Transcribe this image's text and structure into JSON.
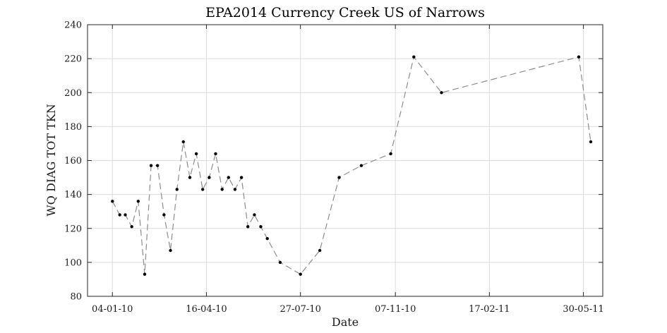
{
  "chart_data": {
    "type": "line",
    "title": "EPA2014 Currency Creek US of Narrows",
    "xlabel": "Date",
    "ylabel": "WQ DIAG TOT TKN",
    "x_axis_type": "date",
    "xlim": [
      "2009-12-08",
      "2011-06-20"
    ],
    "ylim": [
      80,
      240
    ],
    "yticks": [
      80,
      100,
      120,
      140,
      160,
      180,
      200,
      220,
      240
    ],
    "xticks": [
      {
        "date": "2010-01-04",
        "label": "04-01-10"
      },
      {
        "date": "2010-04-16",
        "label": "16-04-10"
      },
      {
        "date": "2010-07-27",
        "label": "27-07-10"
      },
      {
        "date": "2010-11-07",
        "label": "07-11-10"
      },
      {
        "date": "2011-02-17",
        "label": "17-02-11"
      },
      {
        "date": "2011-05-30",
        "label": "30-05-11"
      }
    ],
    "grid": true,
    "line_style": "dashed",
    "line_color": "#8c8c8c",
    "marker_color": "#000000",
    "series": [
      {
        "x": [
          "2010-01-04",
          "2010-01-12",
          "2010-01-18",
          "2010-01-25",
          "2010-02-01",
          "2010-02-08",
          "2010-02-15",
          "2010-02-22",
          "2010-03-01",
          "2010-03-08",
          "2010-03-15",
          "2010-03-22",
          "2010-03-29",
          "2010-04-05",
          "2010-04-12",
          "2010-04-19",
          "2010-04-26",
          "2010-05-03",
          "2010-05-10",
          "2010-05-17",
          "2010-05-24",
          "2010-05-31",
          "2010-06-07",
          "2010-06-14",
          "2010-06-21",
          "2010-07-05",
          "2010-07-27",
          "2010-08-17",
          "2010-09-07",
          "2010-10-01",
          "2010-11-02",
          "2010-11-27",
          "2010-12-27",
          "2011-05-25",
          "2011-06-07"
        ],
        "y": [
          136,
          128,
          128,
          121,
          136,
          93,
          157,
          157,
          128,
          107,
          143,
          171,
          150,
          164,
          143,
          150,
          164,
          143,
          150,
          143,
          150,
          121,
          128,
          121,
          114,
          100,
          93,
          107,
          150,
          157,
          164,
          221,
          200,
          221,
          171
        ]
      }
    ]
  }
}
